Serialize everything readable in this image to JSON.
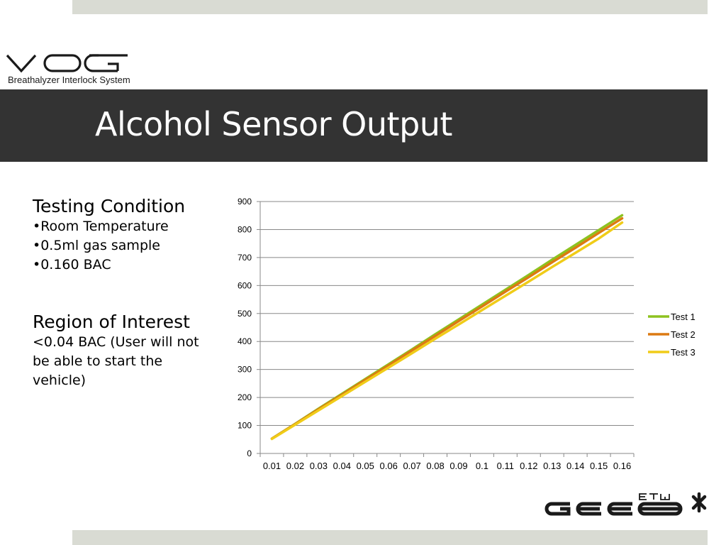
{
  "brand": {
    "name": "VOOG",
    "tagline": "Breathalyzer Interlock System"
  },
  "slide": {
    "title": "Alcohol Sensor Output"
  },
  "testing": {
    "heading": "Testing Condition",
    "items": [
      "•Room Temperature",
      "•0.5ml gas sample",
      "•0.160 BAC"
    ]
  },
  "roi": {
    "heading": "Region of Interest",
    "description": "<0.04 BAC (User will not be able to start the vehicle)"
  },
  "footer_logo": {
    "main": "GEE8",
    "super": "FTW"
  },
  "colors": {
    "band": "#333333",
    "accent_bar": "#d9dbd3",
    "test1": "#8dc21f",
    "test2": "#dc7a12",
    "test3": "#f0cc18"
  },
  "chart_data": {
    "type": "line",
    "title": "",
    "xlabel": "",
    "ylabel": "",
    "categories": [
      "0.01",
      "0.02",
      "0.03",
      "0.04",
      "0.05",
      "0.06",
      "0.07",
      "0.08",
      "0.09",
      "0.1",
      "0.11",
      "0.12",
      "0.13",
      "0.14",
      "0.15",
      "0.16"
    ],
    "ylim": [
      0,
      900
    ],
    "yticks": [
      "0",
      "100",
      "200",
      "300",
      "400",
      "500",
      "600",
      "700",
      "800",
      "900"
    ],
    "grid": true,
    "legend": "right",
    "series": [
      {
        "name": "Test 1",
        "color": "#8dc21f",
        "values": [
          53,
          106,
          160,
          213,
          266,
          319,
          372,
          426,
          479,
          532,
          585,
          638,
          692,
          745,
          798,
          851
        ]
      },
      {
        "name": "Test 2",
        "color": "#dc7a12",
        "values": [
          53,
          105,
          158,
          210,
          263,
          315,
          368,
          420,
          473,
          525,
          578,
          630,
          683,
          735,
          788,
          840
        ]
      },
      {
        "name": "Test 3",
        "color": "#f0cc18",
        "values": [
          52,
          103,
          154,
          205,
          256,
          307,
          358,
          410,
          461,
          512,
          563,
          614,
          666,
          717,
          768,
          825
        ]
      }
    ]
  }
}
